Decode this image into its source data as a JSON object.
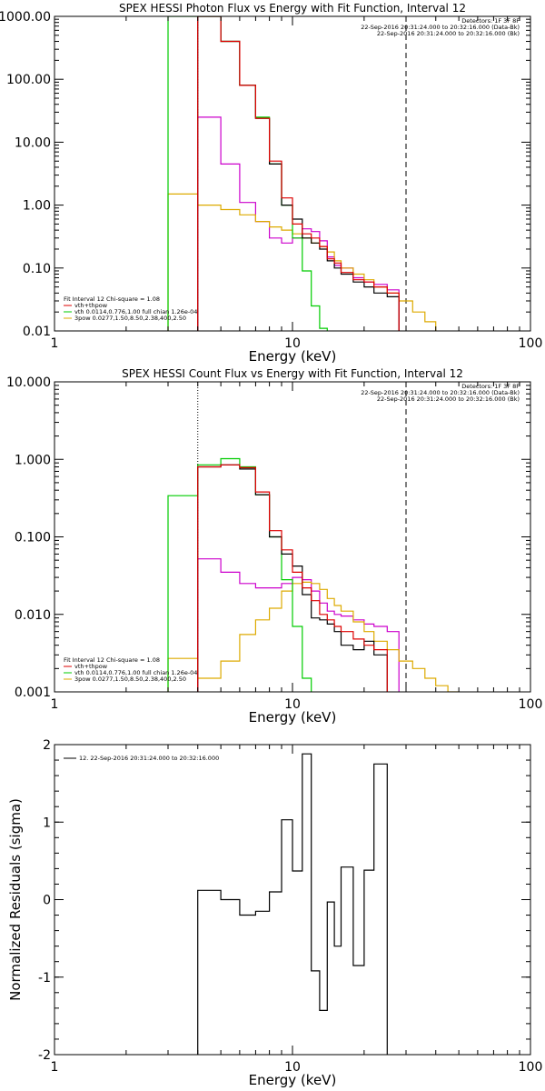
{
  "chart_data": [
    {
      "type": "line",
      "title": "SPEX HESSI Photon Flux vs Energy with Fit Function, Interval 12",
      "xlabel": "Energy (keV)",
      "ylabel": "",
      "xscale": "log",
      "yscale": "log",
      "xlim": [
        1,
        100
      ],
      "ylim": [
        0.01,
        1000
      ],
      "xticks": [
        {
          "v": 1,
          "label": "1"
        },
        {
          "v": 10,
          "label": "10"
        },
        {
          "v": 100,
          "label": "100"
        }
      ],
      "yticks": [
        {
          "v": 0.01,
          "label": "0.01"
        },
        {
          "v": 0.1,
          "label": "0.10"
        },
        {
          "v": 1,
          "label": "1.00"
        },
        {
          "v": 10,
          "label": "10.00"
        },
        {
          "v": 100,
          "label": "100.00"
        },
        {
          "v": 1000,
          "label": "1000.00"
        }
      ],
      "vlines": [
        {
          "x": 4.0,
          "style": "dotted",
          "color": "#000000"
        },
        {
          "x": 30.0,
          "style": "dashed",
          "color": "#000000"
        }
      ],
      "header": [
        {
          "text": "Detectors: 1F 3F 8F",
          "color": "#000000"
        },
        {
          "text": "22-Sep-2016 20:31:24.000 to 20:32:16.000 (Data-Bk)",
          "color": "#000000"
        },
        {
          "text": "22-Sep-2016 20:31:24.000 to 20:32:16.000 (Bk)",
          "color": "#cc00cc"
        }
      ],
      "legend": {
        "header": "Fit Interval 12   Chi-square = 1.08",
        "entries": [
          {
            "text": "vth+thpow",
            "color": "#dd0000"
          },
          {
            "text": "vth 0.0114,0.776,1.00  full chian 1.26e-04",
            "color": "#00cc00"
          },
          {
            "text": "3pow 0.0277,1.50,8.50,2.38,400,2.50",
            "color": "#ddaa00"
          }
        ]
      },
      "bin_edges": [
        3.0,
        4.0,
        5.0,
        6.0,
        7.0,
        8.0,
        9.0,
        10.0,
        11.0,
        12.0,
        13.0,
        14.0,
        15.0,
        16.0,
        18.0,
        20.0,
        22.0,
        25.0,
        28.0,
        32.0,
        36.0,
        40.0
      ],
      "series": [
        {
          "color": "#cc00cc",
          "start": 1,
          "values": [
            25,
            4.5,
            1.1,
            0.55,
            0.3,
            0.25,
            0.3,
            0.42,
            0.38,
            0.27,
            0.15,
            0.11,
            0.1,
            0.07,
            0.06,
            0.055,
            0.045
          ]
        },
        {
          "color": "#ddaa00",
          "start": 0,
          "values": [
            1.5,
            1.0,
            0.85,
            0.7,
            0.55,
            0.45,
            0.4,
            0.35,
            0.3,
            0.25,
            0.22,
            0.18,
            0.13,
            0.1,
            0.08,
            0.065,
            0.05,
            0.04,
            0.03,
            0.02,
            0.014
          ]
        },
        {
          "color": "#00cc00",
          "start": 0,
          "values": [
            1000,
            1000,
            400,
            80,
            25,
            4.5,
            1.0,
            0.3,
            0.09,
            0.025,
            0.011
          ]
        },
        {
          "color": "#000000",
          "start": 1,
          "values": [
            1000,
            400,
            80,
            24,
            4.5,
            1.0,
            0.6,
            0.3,
            0.25,
            0.2,
            0.13,
            0.1,
            0.08,
            0.06,
            0.05,
            0.04,
            0.035
          ]
        },
        {
          "color": "#dd0000",
          "start": 1,
          "values": [
            1000,
            400,
            80,
            24,
            5.0,
            1.3,
            0.5,
            0.35,
            0.3,
            0.22,
            0.14,
            0.12,
            0.085,
            0.065,
            0.06,
            0.05,
            0.04
          ]
        }
      ]
    },
    {
      "type": "line",
      "title": "SPEX HESSI Count Flux vs Energy with Fit Function, Interval 12",
      "xlabel": "Energy (keV)",
      "ylabel": "",
      "xscale": "log",
      "yscale": "log",
      "xlim": [
        1,
        100
      ],
      "ylim": [
        0.001,
        10
      ],
      "xticks": [
        {
          "v": 1,
          "label": "1"
        },
        {
          "v": 10,
          "label": "10"
        },
        {
          "v": 100,
          "label": "100"
        }
      ],
      "yticks": [
        {
          "v": 0.001,
          "label": "0.001"
        },
        {
          "v": 0.01,
          "label": "0.010"
        },
        {
          "v": 0.1,
          "label": "0.100"
        },
        {
          "v": 1,
          "label": "1.000"
        },
        {
          "v": 10,
          "label": "10.000"
        }
      ],
      "vlines": [
        {
          "x": 4.0,
          "style": "dotted",
          "color": "#000000"
        },
        {
          "x": 30.0,
          "style": "dashed",
          "color": "#000000"
        }
      ],
      "header": [
        {
          "text": "Detectors: 1F 3F 8F",
          "color": "#000000"
        },
        {
          "text": "22-Sep-2016 20:31:24.000 to 20:32:16.000 (Data-Bk)",
          "color": "#000000"
        },
        {
          "text": "22-Sep-2016 20:31:24.000 to 20:32:16.000 (Bk)",
          "color": "#cc00cc"
        }
      ],
      "legend": {
        "header": "Fit Interval 12   Chi-square = 1.08",
        "entries": [
          {
            "text": "vth+thpow",
            "color": "#dd0000"
          },
          {
            "text": "vth 0.0114,0.776,1.00  full chian 1.26e-04",
            "color": "#00cc00"
          },
          {
            "text": "3pow 0.0277,1.50,8.50,2.38,400,2.50",
            "color": "#ddaa00"
          }
        ]
      },
      "bin_edges": [
        3.0,
        4.0,
        5.0,
        6.0,
        7.0,
        8.0,
        9.0,
        10.0,
        11.0,
        12.0,
        13.0,
        14.0,
        15.0,
        16.0,
        18.0,
        20.0,
        22.0,
        25.0,
        28.0,
        32.0,
        36.0,
        40.0,
        45.0,
        50.0
      ],
      "series": [
        {
          "color": "#cc00cc",
          "start": 1,
          "values": [
            0.052,
            0.035,
            0.025,
            0.022,
            0.022,
            0.025,
            0.03,
            0.028,
            0.02,
            0.014,
            0.011,
            0.01,
            0.0095,
            0.0085,
            0.0075,
            0.007,
            0.006
          ]
        },
        {
          "color": "#ddaa00",
          "start": 0,
          "values": [
            0.0027,
            0.0015,
            0.0025,
            0.0055,
            0.0085,
            0.012,
            0.02,
            0.025,
            0.026,
            0.025,
            0.021,
            0.016,
            0.013,
            0.011,
            0.008,
            0.006,
            0.0045,
            0.0035,
            0.0025,
            0.002,
            0.0015,
            0.0012,
            0.001
          ]
        },
        {
          "color": "#00cc00",
          "start": 0,
          "values": [
            0.34,
            0.85,
            1.02,
            0.8,
            0.35,
            0.1,
            0.028,
            0.007,
            0.0015,
            0.0002
          ]
        },
        {
          "color": "#000000",
          "start": 1,
          "values": [
            0.8,
            0.85,
            0.75,
            0.35,
            0.1,
            0.06,
            0.042,
            0.018,
            0.009,
            0.0085,
            0.0075,
            0.006,
            0.004,
            0.0035,
            0.0045,
            0.003
          ]
        },
        {
          "color": "#dd0000",
          "start": 1,
          "values": [
            0.8,
            0.85,
            0.78,
            0.38,
            0.12,
            0.068,
            0.035,
            0.022,
            0.015,
            0.01,
            0.0085,
            0.007,
            0.006,
            0.0048,
            0.004,
            0.0035
          ]
        }
      ]
    },
    {
      "type": "line",
      "title": "",
      "xlabel": "Energy (keV)",
      "ylabel": "Normalized Residuals (sigma)",
      "xscale": "log",
      "yscale": "linear",
      "xlim": [
        1,
        100
      ],
      "ylim": [
        -2,
        2
      ],
      "xticks": [
        {
          "v": 1,
          "label": "1"
        },
        {
          "v": 10,
          "label": "10"
        },
        {
          "v": 100,
          "label": "100"
        }
      ],
      "yticks": [
        {
          "v": -2,
          "label": "-2"
        },
        {
          "v": -1,
          "label": "-1"
        },
        {
          "v": 0,
          "label": "0"
        },
        {
          "v": 1,
          "label": "1"
        },
        {
          "v": 2,
          "label": "2"
        }
      ],
      "vlines": [],
      "header": [],
      "legend": {
        "header": "",
        "entries": [
          {
            "text": "12. 22-Sep-2016 20:31:24.000 to 20:32:16.000",
            "color": "#000000"
          }
        ]
      },
      "bin_edges": [
        4.0,
        5.0,
        6.0,
        7.0,
        8.0,
        9.0,
        10.0,
        11.0,
        12.0,
        13.0,
        14.0,
        15.0,
        16.0,
        18.0,
        20.0,
        22.0,
        25.0,
        28.0,
        32.0
      ],
      "series": [
        {
          "color": "#000000",
          "start": 0,
          "values": [
            0.12,
            0.0,
            -0.2,
            -0.15,
            0.1,
            1.03,
            0.37,
            1.88,
            -0.92,
            -1.43,
            -0.03,
            -0.6,
            0.42,
            -0.85,
            0.38,
            1.75
          ]
        }
      ]
    }
  ]
}
